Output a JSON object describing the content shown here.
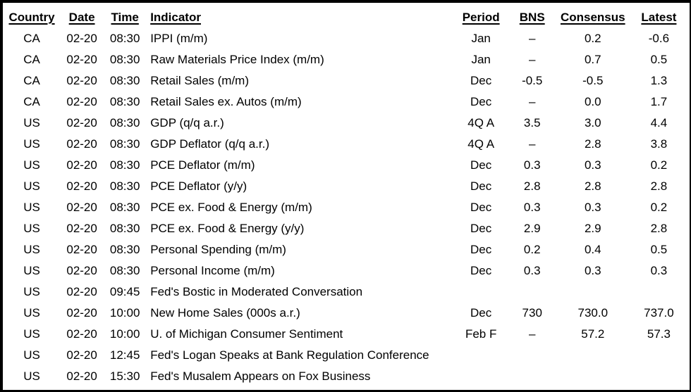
{
  "table": {
    "columns": [
      {
        "key": "country",
        "label": "Country"
      },
      {
        "key": "date",
        "label": "Date"
      },
      {
        "key": "time",
        "label": "Time"
      },
      {
        "key": "indicator",
        "label": "Indicator"
      },
      {
        "key": "period",
        "label": "Period"
      },
      {
        "key": "bns",
        "label": "BNS"
      },
      {
        "key": "consensus",
        "label": "Consensus"
      },
      {
        "key": "latest",
        "label": "Latest"
      }
    ],
    "rows": [
      [
        "CA",
        "02-20",
        "08:30",
        "IPPI (m/m)",
        "Jan",
        "–",
        "0.2",
        "-0.6"
      ],
      [
        "CA",
        "02-20",
        "08:30",
        "Raw Materials Price Index (m/m)",
        "Jan",
        "–",
        "0.7",
        "0.5"
      ],
      [
        "CA",
        "02-20",
        "08:30",
        "Retail Sales (m/m)",
        "Dec",
        "-0.5",
        "-0.5",
        "1.3"
      ],
      [
        "CA",
        "02-20",
        "08:30",
        "Retail Sales ex. Autos (m/m)",
        "Dec",
        "–",
        "0.0",
        "1.7"
      ],
      [
        "US",
        "02-20",
        "08:30",
        "GDP (q/q a.r.)",
        "4Q A",
        "3.5",
        "3.0",
        "4.4"
      ],
      [
        "US",
        "02-20",
        "08:30",
        "GDP Deflator (q/q a.r.)",
        "4Q A",
        "–",
        "2.8",
        "3.8"
      ],
      [
        "US",
        "02-20",
        "08:30",
        "PCE Deflator (m/m)",
        "Dec",
        "0.3",
        "0.3",
        "0.2"
      ],
      [
        "US",
        "02-20",
        "08:30",
        "PCE Deflator (y/y)",
        "Dec",
        "2.8",
        "2.8",
        "2.8"
      ],
      [
        "US",
        "02-20",
        "08:30",
        "PCE ex. Food & Energy (m/m)",
        "Dec",
        "0.3",
        "0.3",
        "0.2"
      ],
      [
        "US",
        "02-20",
        "08:30",
        "PCE ex. Food & Energy (y/y)",
        "Dec",
        "2.9",
        "2.9",
        "2.8"
      ],
      [
        "US",
        "02-20",
        "08:30",
        "Personal Spending (m/m)",
        "Dec",
        "0.2",
        "0.4",
        "0.5"
      ],
      [
        "US",
        "02-20",
        "08:30",
        "Personal Income (m/m)",
        "Dec",
        "0.3",
        "0.3",
        "0.3"
      ],
      [
        "US",
        "02-20",
        "09:45",
        "Fed's Bostic in Moderated Conversation",
        "",
        "",
        "",
        ""
      ],
      [
        "US",
        "02-20",
        "10:00",
        "New Home Sales (000s a.r.)",
        "Dec",
        "730",
        "730.0",
        "737.0"
      ],
      [
        "US",
        "02-20",
        "10:00",
        "U. of Michigan Consumer Sentiment",
        "Feb F",
        "–",
        "57.2",
        "57.3"
      ],
      [
        "US",
        "02-20",
        "12:45",
        "Fed's Logan Speaks at Bank Regulation Conference",
        "",
        "",
        "",
        ""
      ],
      [
        "US",
        "02-20",
        "15:30",
        "Fed's Musalem Appears on Fox Business",
        "",
        "",
        "",
        ""
      ]
    ]
  },
  "colors": {
    "text": "#000000",
    "background": "#ffffff",
    "border": "#000000"
  }
}
